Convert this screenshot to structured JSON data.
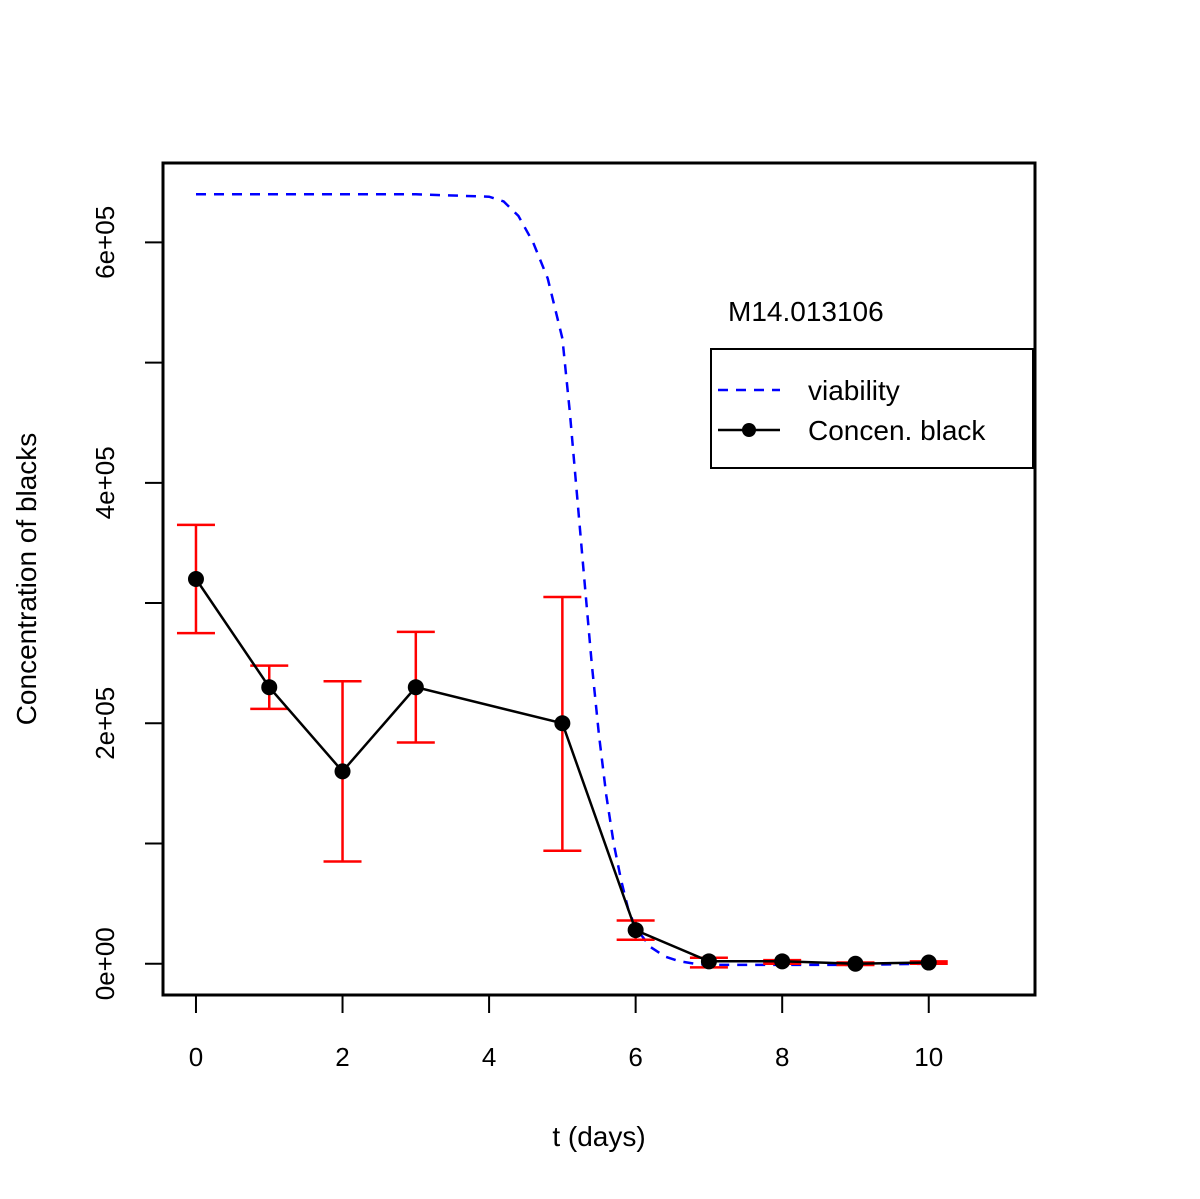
{
  "chart_data": {
    "type": "line",
    "title": "",
    "annotation": "M14.013106",
    "xlabel": "t (days)",
    "ylabel": "Concentration of blacks",
    "xlim": [
      -0.45,
      11.45
    ],
    "ylim": [
      -26000,
      666000
    ],
    "x_ticks": [
      0,
      2,
      4,
      6,
      8,
      10
    ],
    "x_tick_labels": [
      "0",
      "2",
      "4",
      "6",
      "8",
      "10"
    ],
    "y_ticks": [
      0,
      100000,
      200000,
      300000,
      400000,
      500000,
      600000
    ],
    "y_tick_labels": [
      "0e+00",
      "",
      "2e+05",
      "",
      "4e+05",
      "",
      "6e+05"
    ],
    "grid": false,
    "legend_position": "right",
    "colors": {
      "viability": "#0000ff",
      "concentration": "#000000",
      "error_bars": "#ff0000"
    },
    "series": [
      {
        "name": "viability",
        "style": "dashed",
        "color": "#0000ff",
        "x": [
          0,
          1,
          2,
          3,
          4,
          4.2,
          4.4,
          4.6,
          4.8,
          5,
          5.1,
          5.2,
          5.3,
          5.4,
          5.5,
          5.6,
          5.7,
          5.8,
          5.9,
          6,
          6.2,
          6.4,
          6.6,
          6.8,
          7,
          8,
          9,
          10
        ],
        "y": [
          640000,
          640000,
          640000,
          640000,
          638000,
          634000,
          622000,
          600000,
          570000,
          520000,
          460000,
          390000,
          320000,
          250000,
          190000,
          140000,
          100000,
          70000,
          45000,
          30000,
          14000,
          6000,
          2000,
          0,
          -1000,
          -1000,
          -1000,
          0
        ]
      },
      {
        "name": "Concen. black",
        "style": "solid-with-points",
        "color": "#000000",
        "x": [
          0,
          1,
          2,
          3,
          5,
          6,
          7,
          8,
          9,
          10
        ],
        "y": [
          320000,
          230000,
          160000,
          230000,
          200000,
          28000,
          2000,
          2000,
          0,
          1000
        ],
        "error_low": [
          275000,
          212000,
          85000,
          184000,
          94000,
          20000,
          -3000,
          0,
          -1000,
          0
        ],
        "error_high": [
          365000,
          248000,
          235000,
          276000,
          305000,
          36000,
          5000,
          3000,
          1000,
          2000
        ]
      }
    ]
  }
}
